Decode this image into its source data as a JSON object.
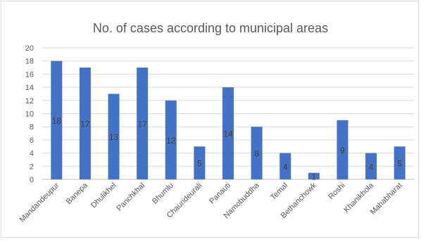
{
  "chart_data": {
    "type": "bar",
    "title": "No. of cases according to municipal areas",
    "xlabel": "",
    "ylabel": "",
    "ylim": [
      0,
      20
    ],
    "yticks": [
      0,
      2,
      4,
      6,
      8,
      10,
      12,
      14,
      16,
      18,
      20
    ],
    "grid": true,
    "legend": "none",
    "bar_color": "#4472c4",
    "categories": [
      "Mandandeupur",
      "Banepa",
      "Dhulikhel",
      "Panchkhal",
      "Bhumlu",
      "Chaurideurali",
      "Panauti",
      "Namobuddha",
      "Temal",
      "Bethanchowk",
      "Roshi",
      "Khanikhola",
      "Mahabharat"
    ],
    "values": [
      18,
      17,
      13,
      17,
      12,
      5,
      14,
      8,
      4,
      1,
      9,
      4,
      5
    ]
  }
}
